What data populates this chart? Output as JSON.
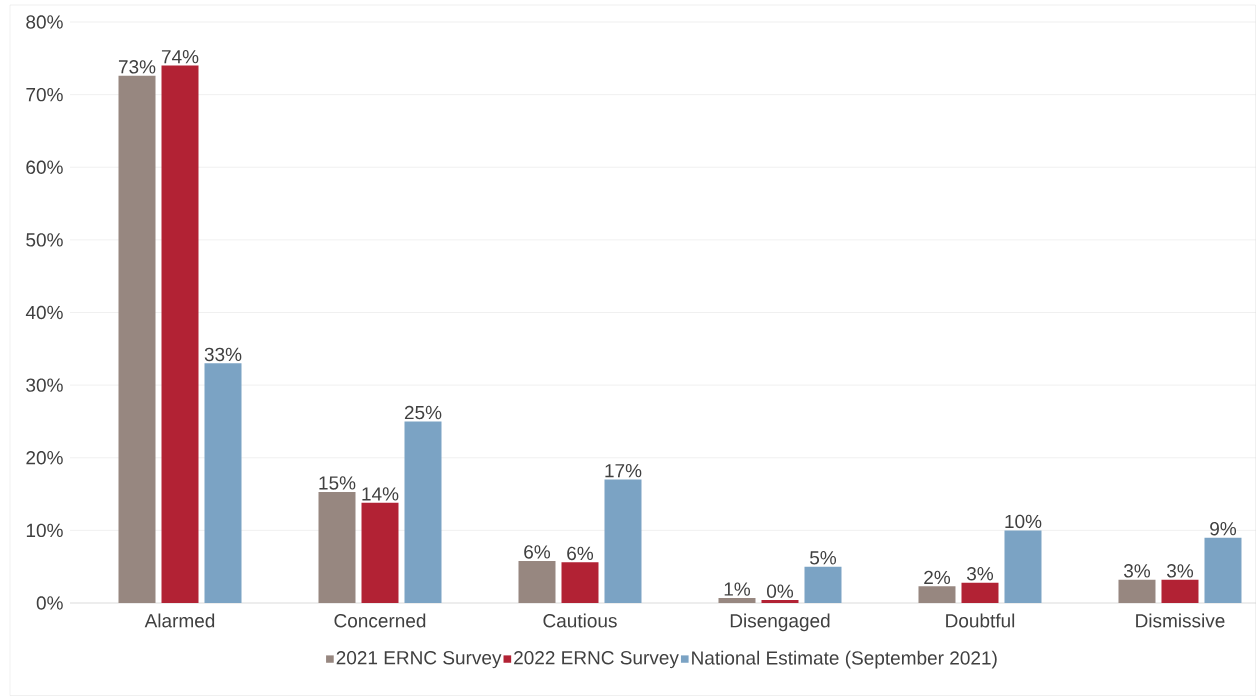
{
  "chart_data": {
    "type": "bar",
    "categories": [
      "Alarmed",
      "Concerned",
      "Cautious",
      "Disengaged",
      "Doubtful",
      "Dismissive"
    ],
    "series": [
      {
        "name": "2021 ERNC Survey",
        "color": "#978780",
        "values": [
          72.6,
          15.3,
          5.8,
          0.7,
          2.3,
          3.2
        ],
        "value_labels": [
          "73%",
          "15%",
          "6%",
          "1%",
          "2%",
          "3%"
        ]
      },
      {
        "name": "2022 ERNC Survey",
        "color": "#b22234",
        "values": [
          74.0,
          13.8,
          5.6,
          0.4,
          2.8,
          3.2
        ],
        "value_labels": [
          "74%",
          "14%",
          "6%",
          "0%",
          "3%",
          "3%"
        ]
      },
      {
        "name": "National Estimate (September 2021)",
        "color": "#7ba3c4",
        "values": [
          33,
          25,
          17,
          5,
          10,
          9
        ],
        "value_labels": [
          "33%",
          "25%",
          "17%",
          "5%",
          "10%",
          "9%"
        ]
      }
    ],
    "ylim": [
      0,
      80
    ],
    "yticks": [
      {
        "value": 0,
        "label": "0%"
      },
      {
        "value": 10,
        "label": "10%"
      },
      {
        "value": 20,
        "label": "20%"
      },
      {
        "value": 30,
        "label": "30%"
      },
      {
        "value": 40,
        "label": "40%"
      },
      {
        "value": 50,
        "label": "50%"
      },
      {
        "value": 60,
        "label": "60%"
      },
      {
        "value": 70,
        "label": "70%"
      },
      {
        "value": 80,
        "label": "80%"
      }
    ],
    "grid": "y",
    "legend": "bottom"
  }
}
